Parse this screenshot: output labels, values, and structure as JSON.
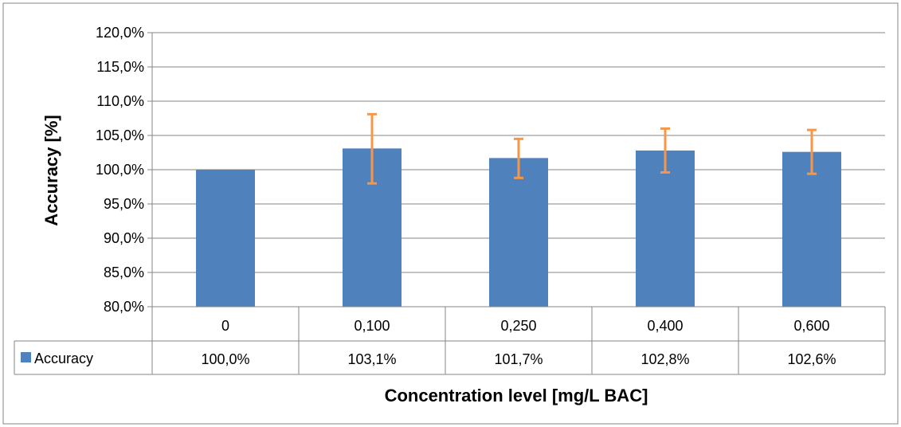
{
  "chart_data": {
    "type": "bar",
    "categories": [
      "0",
      "0,100",
      "0,250",
      "0,400",
      "0,600"
    ],
    "series": [
      {
        "name": "Accuracy",
        "values": [
          100.0,
          103.1,
          101.7,
          102.8,
          102.6
        ],
        "value_labels": [
          "100,0%",
          "103,1%",
          "101,7%",
          "102,8%",
          "102,6%"
        ],
        "error_low": [
          100.0,
          98.0,
          98.8,
          99.6,
          99.4
        ],
        "error_high": [
          100.0,
          108.1,
          104.5,
          106.0,
          105.8
        ],
        "color": "#4f81bd",
        "error_color": "#f79646"
      }
    ],
    "xlabel": "Concentration level [mg/L BAC]",
    "ylabel": "Accuracy [%]",
    "ylim": [
      80,
      120
    ],
    "yticks": [
      80,
      85,
      90,
      95,
      100,
      105,
      110,
      115,
      120
    ],
    "ytick_labels": [
      "80,0%",
      "85,0%",
      "90,0%",
      "95,0%",
      "100,0%",
      "105,0%",
      "110,0%",
      "115,0%",
      "120,0%"
    ],
    "grid": true,
    "legend": "data-table"
  }
}
